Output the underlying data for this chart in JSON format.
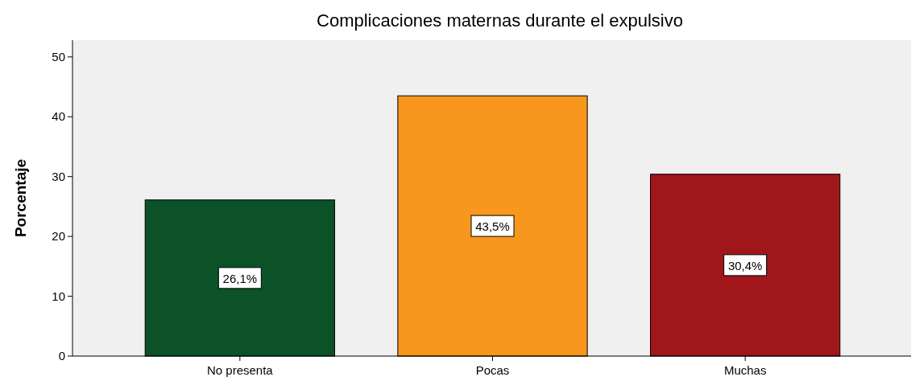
{
  "chart_data": {
    "type": "bar",
    "title": "Complicaciones maternas durante el expulsivo",
    "ylabel": "Porcentaje",
    "categories": [
      "No presenta",
      "Pocas",
      "Muchas"
    ],
    "values": [
      26.1,
      43.5,
      30.4
    ],
    "colors": [
      "#0b5229",
      "#f7971e",
      "#a0161a"
    ],
    "value_labels": [
      "26,1%",
      "43,5%",
      "30,4%"
    ],
    "ylim": [
      0,
      52.8
    ],
    "yticks": [
      0,
      10,
      20,
      30,
      40,
      50
    ],
    "grid": false
  }
}
